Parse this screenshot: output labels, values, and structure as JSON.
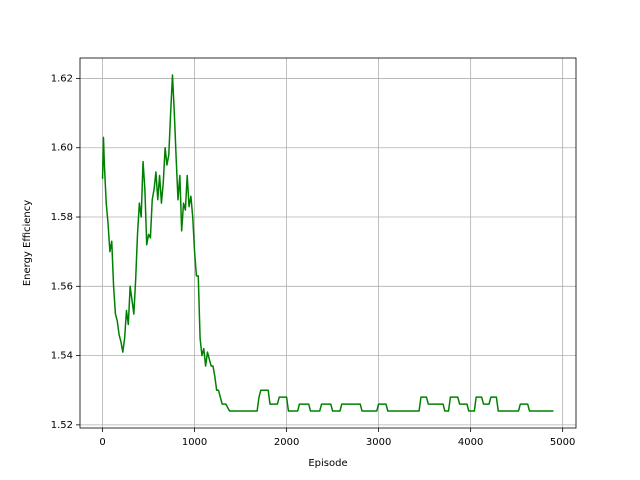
{
  "chart_data": {
    "type": "line",
    "xlabel": "Episode",
    "ylabel": "Energy Efficiency",
    "xlim": [
      -245,
      5145
    ],
    "ylim": [
      1.5191,
      1.6259
    ],
    "xticks": [
      0,
      1000,
      2000,
      3000,
      4000,
      5000
    ],
    "yticks": [
      1.52,
      1.54,
      1.56,
      1.58,
      {
        "value": 1.6,
        "label": "1.60"
      },
      1.62
    ],
    "grid": true,
    "x": [
      0,
      10,
      20,
      40,
      60,
      80,
      100,
      120,
      140,
      160,
      180,
      200,
      220,
      240,
      260,
      280,
      300,
      320,
      340,
      360,
      380,
      400,
      420,
      440,
      460,
      480,
      500,
      520,
      540,
      560,
      580,
      600,
      620,
      640,
      660,
      680,
      700,
      720,
      740,
      760,
      780,
      800,
      820,
      840,
      860,
      880,
      900,
      920,
      940,
      960,
      980,
      1000,
      1020,
      1040,
      1060,
      1080,
      1100,
      1120,
      1140,
      1160,
      1180,
      1200,
      1220,
      1240,
      1260,
      1280,
      1300,
      1340,
      1380,
      1680,
      1700,
      1720,
      1800,
      1820,
      1900,
      1920,
      2000,
      2020,
      2120,
      2140,
      2240,
      2260,
      2360,
      2380,
      2480,
      2500,
      2580,
      2600,
      2800,
      2820,
      2980,
      3000,
      3080,
      3100,
      3440,
      3460,
      3520,
      3540,
      3700,
      3720,
      3760,
      3780,
      3860,
      3880,
      3960,
      3980,
      4040,
      4060,
      4120,
      4140,
      4200,
      4220,
      4280,
      4300,
      4520,
      4540,
      4620,
      4640,
      4900
    ],
    "series": [
      {
        "name": "Energy Efficiency",
        "color": "#008000",
        "values": [
          1.591,
          1.603,
          1.595,
          1.584,
          1.578,
          1.57,
          1.573,
          1.56,
          1.552,
          1.55,
          1.546,
          1.544,
          1.541,
          1.545,
          1.553,
          1.549,
          1.56,
          1.556,
          1.552,
          1.562,
          1.575,
          1.584,
          1.58,
          1.596,
          1.588,
          1.572,
          1.575,
          1.574,
          1.585,
          1.588,
          1.593,
          1.585,
          1.592,
          1.584,
          1.59,
          1.6,
          1.595,
          1.598,
          1.61,
          1.621,
          1.61,
          1.597,
          1.585,
          1.592,
          1.576,
          1.584,
          1.582,
          1.592,
          1.583,
          1.586,
          1.58,
          1.57,
          1.563,
          1.563,
          1.545,
          1.54,
          1.542,
          1.537,
          1.541,
          1.539,
          1.537,
          1.537,
          1.534,
          1.53,
          1.53,
          1.528,
          1.526,
          1.526,
          1.524,
          1.524,
          1.528,
          1.53,
          1.53,
          1.526,
          1.526,
          1.528,
          1.528,
          1.524,
          1.524,
          1.526,
          1.526,
          1.524,
          1.524,
          1.526,
          1.526,
          1.524,
          1.524,
          1.526,
          1.526,
          1.524,
          1.524,
          1.526,
          1.526,
          1.524,
          1.524,
          1.528,
          1.528,
          1.526,
          1.526,
          1.524,
          1.524,
          1.528,
          1.528,
          1.526,
          1.526,
          1.524,
          1.524,
          1.528,
          1.528,
          1.526,
          1.526,
          1.528,
          1.528,
          1.524,
          1.524,
          1.526,
          1.526,
          1.524,
          1.524
        ]
      }
    ]
  }
}
